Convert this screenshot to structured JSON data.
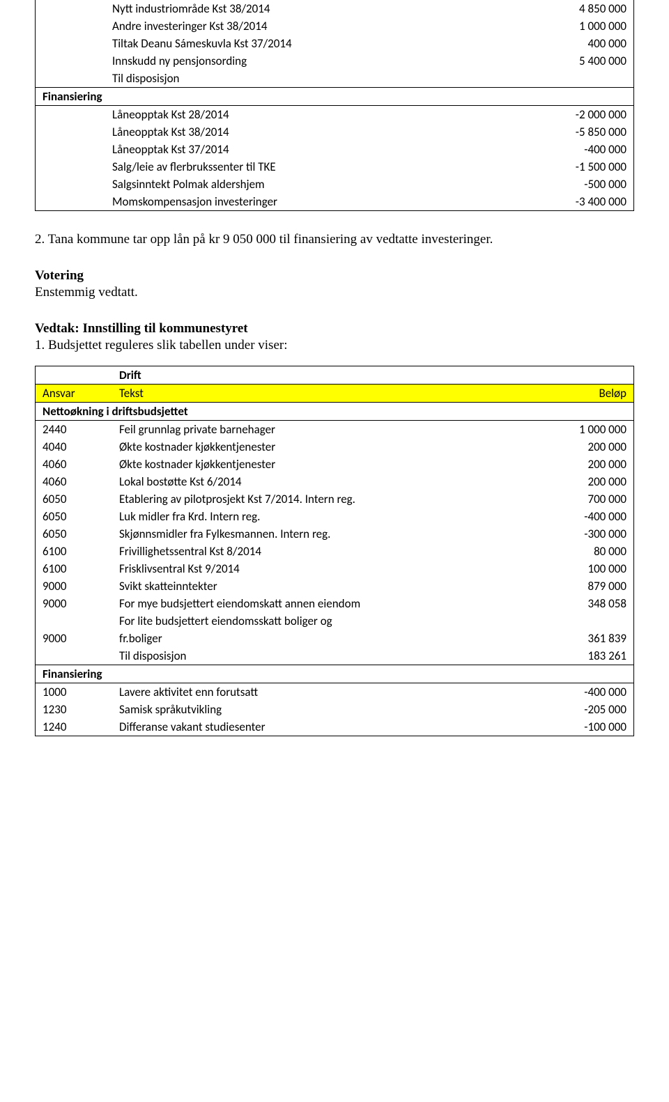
{
  "colors": {
    "highlight": "#ffff00",
    "background": "#ffffff",
    "text": "#000000",
    "border": "#000000"
  },
  "table1": {
    "rows": [
      {
        "label": "Nytt industriområde Kst 38/2014",
        "value": "4 850 000"
      },
      {
        "label": "Andre investeringer Kst 38/2014",
        "value": "1 000 000"
      },
      {
        "label": "Tiltak Deanu Sámeskuvla Kst 37/2014",
        "value": "400 000"
      },
      {
        "label": "Innskudd ny pensjonsording",
        "value": "5 400 000"
      },
      {
        "label": "Til disposisjon",
        "value": ""
      }
    ],
    "finans_label": "Finansiering",
    "finans_rows": [
      {
        "label": "Låneopptak Kst 28/2014",
        "value": "-2 000 000"
      },
      {
        "label": "Låneopptak Kst 38/2014",
        "value": "-5 850 000"
      },
      {
        "label": "Låneopptak Kst 37/2014",
        "value": "-400 000"
      },
      {
        "label": "Salg/leie av flerbrukssenter til TKE",
        "value": "-1 500 000"
      },
      {
        "label": "Salgsinntekt Polmak aldershjem",
        "value": "-500 000"
      },
      {
        "label": "Momskompensasjon investeringer",
        "value": "-3 400 000"
      }
    ]
  },
  "para_point2": "2.  Tana kommune tar opp lån på kr 9 050 000 til finansiering av vedtatte investeringer.",
  "votering_heading": "Votering",
  "votering_text": "Enstemmig vedtatt.",
  "vedtak_heading": "Vedtak: Innstilling til kommunestyret",
  "list_point1": "1.  Budsjettet reguleres slik tabellen under viser:",
  "table2": {
    "drift_label": "Drift",
    "header": {
      "c1": "Ansvar",
      "c2": "Tekst",
      "c3": "Beløp"
    },
    "nettok_label": "Nettoøkning i driftsbudsjettet",
    "rows": [
      {
        "a": "2440",
        "t": "Feil grunnlag private barnehager",
        "v": "1 000 000"
      },
      {
        "a": "4040",
        "t": "Økte kostnader kjøkkentjenester",
        "v": "200 000"
      },
      {
        "a": "4060",
        "t": "Økte kostnader kjøkkentjenester",
        "v": "200 000"
      },
      {
        "a": "4060",
        "t": "Lokal bostøtte Kst 6/2014",
        "v": "200 000"
      },
      {
        "a": "6050",
        "t": "Etablering av pilotprosjekt Kst 7/2014. Intern reg.",
        "v": "700 000"
      },
      {
        "a": "6050",
        "t": "Luk midler fra Krd. Intern reg.",
        "v": "-400 000"
      },
      {
        "a": "6050",
        "t": "Skjønnsmidler fra Fylkesmannen. Intern reg.",
        "v": "-300 000"
      },
      {
        "a": "6100",
        "t": "Frivillighetssentral Kst 8/2014",
        "v": "80 000"
      },
      {
        "a": "6100",
        "t": "Frisklivsentral Kst 9/2014",
        "v": "100 000"
      },
      {
        "a": "9000",
        "t": "Svikt skatteinntekter",
        "v": "879 000"
      },
      {
        "a": "9000",
        "t": "For mye budsjettert eiendomskatt annen eiendom",
        "v": "348 058"
      }
    ],
    "multi_row": {
      "a": "9000",
      "t1": "For lite budsjettert eiendomsskatt boliger og",
      "t2": "fr.boliger",
      "v": "361 839"
    },
    "til_disp": {
      "t": "Til disposisjon",
      "v": "183 261"
    },
    "finans_label": "Finansiering",
    "finans_rows": [
      {
        "a": "1000",
        "t": "Lavere aktivitet enn forutsatt",
        "v": "-400 000"
      },
      {
        "a": "1230",
        "t": "Samisk språkutvikling",
        "v": "-205 000"
      },
      {
        "a": "1240",
        "t": "Differanse vakant studiesenter",
        "v": "-100 000"
      }
    ]
  }
}
